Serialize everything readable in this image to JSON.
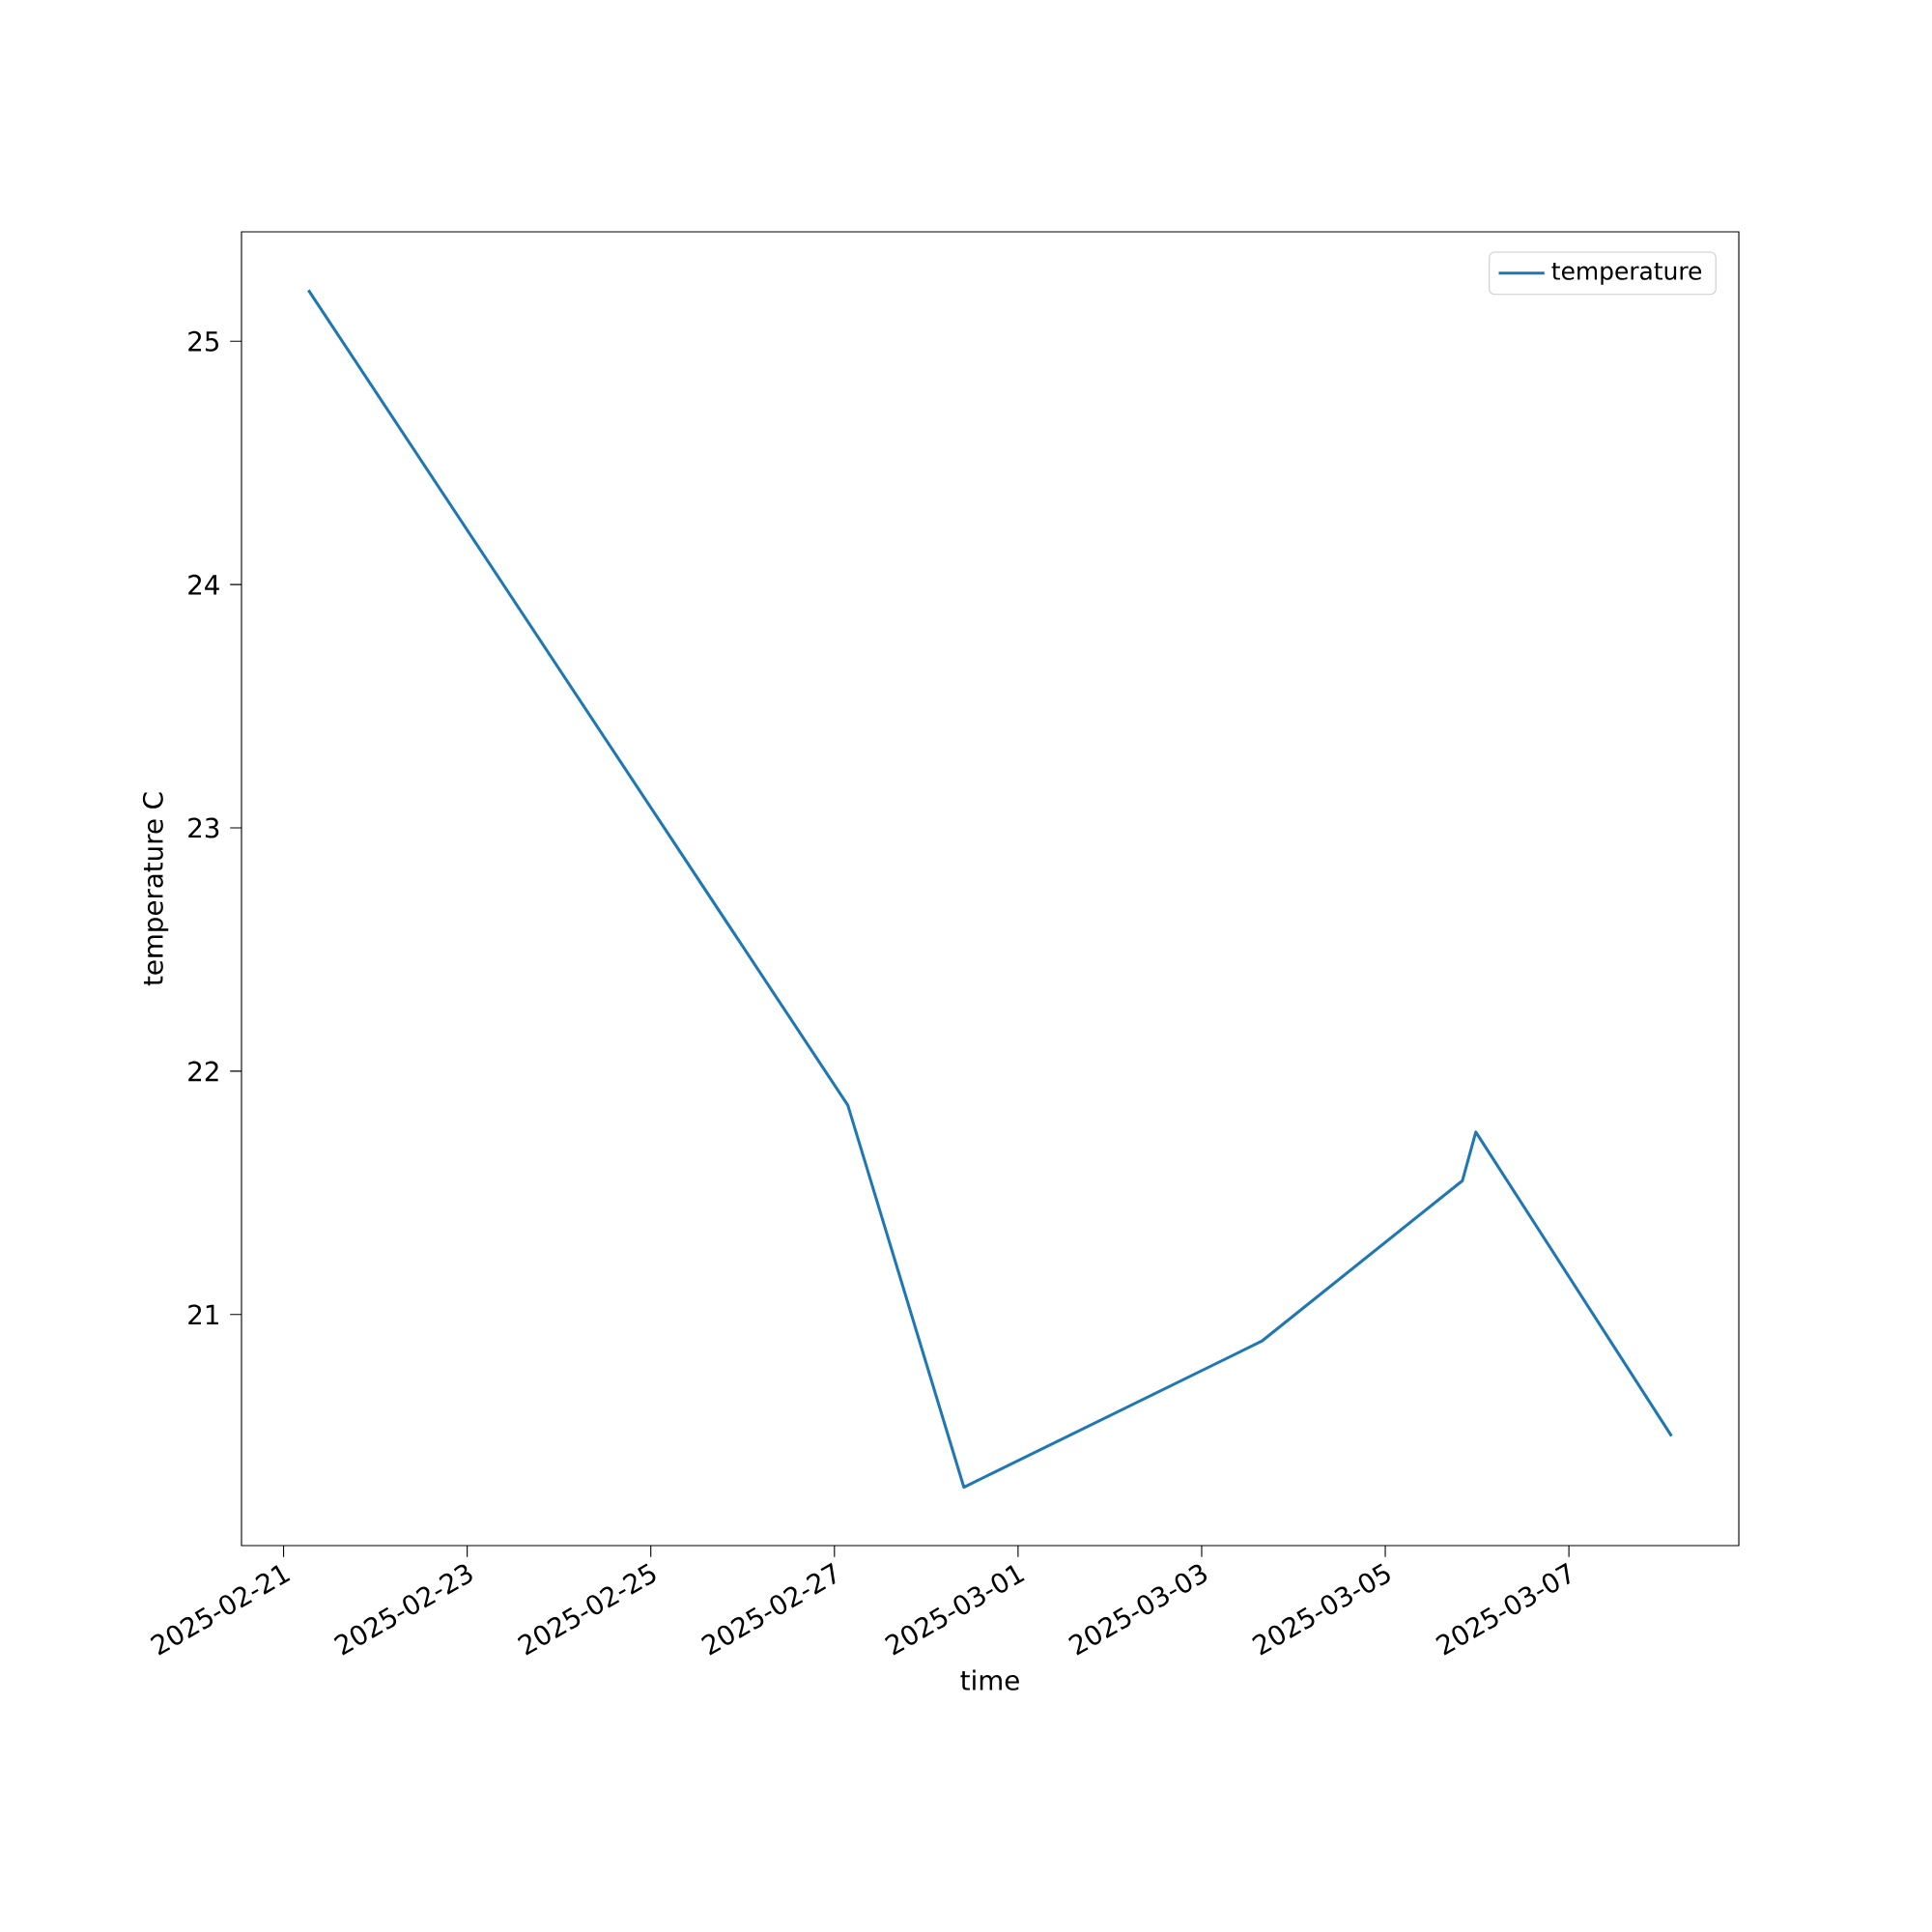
{
  "chart_data": {
    "type": "line",
    "xlabel": "time",
    "ylabel": "temperature C",
    "x": [
      "2025-02-21T06:30",
      "2025-02-27T03:30",
      "2025-02-28T09:50",
      "2025-03-03T15:40",
      "2025-03-05T20:10",
      "2025-03-05T23:40",
      "2025-03-08T02:50"
    ],
    "series": [
      {
        "name": "temperature",
        "color": "#1f77b4",
        "values": [
          25.21,
          21.86,
          20.29,
          20.89,
          21.55,
          21.75,
          20.5
        ]
      }
    ],
    "xlim": [
      "2025-02-20T13:00",
      "2025-03-08T20:25"
    ],
    "ylim": [
      20.05,
      25.45
    ],
    "xticks": [
      "2025-02-21",
      "2025-02-23",
      "2025-02-25",
      "2025-02-27",
      "2025-03-01",
      "2025-03-03",
      "2025-03-05",
      "2025-03-07"
    ],
    "yticks": [
      21,
      22,
      23,
      24,
      25
    ],
    "legend": "top right"
  }
}
